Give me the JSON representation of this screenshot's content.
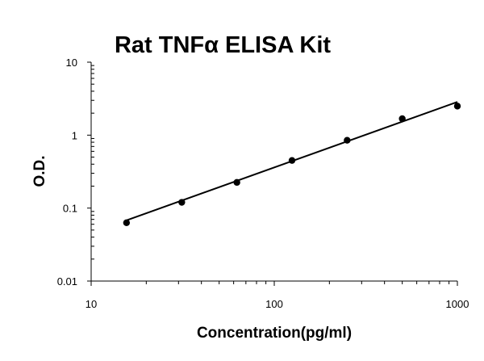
{
  "chart_data": {
    "type": "scatter",
    "title": "Rat TNFα ELISA Kit",
    "xlabel": "Concentration(pg/ml)",
    "ylabel": "O.D.",
    "x_scale": "log",
    "y_scale": "log",
    "xlim": [
      10,
      1000
    ],
    "ylim": [
      0.01,
      10
    ],
    "x_ticks": [
      "10",
      "100",
      "1000"
    ],
    "y_ticks": [
      "10",
      "1",
      "0.1",
      "0.01"
    ],
    "grid": false,
    "legend": "none",
    "series": [
      {
        "points": [
          {
            "x": 15.6,
            "y": 0.063
          },
          {
            "x": 31.25,
            "y": 0.12
          },
          {
            "x": 62.5,
            "y": 0.225
          },
          {
            "x": 125,
            "y": 0.45
          },
          {
            "x": 250,
            "y": 0.85
          },
          {
            "x": 500,
            "y": 1.68
          },
          {
            "x": 1000,
            "y": 2.5
          }
        ],
        "color": "#000000"
      }
    ],
    "fit_line": {
      "type": "power",
      "from": {
        "x": 15.6,
        "y": 0.068
      },
      "to": {
        "x": 1000,
        "y": 2.85
      },
      "color": "#000000"
    }
  }
}
